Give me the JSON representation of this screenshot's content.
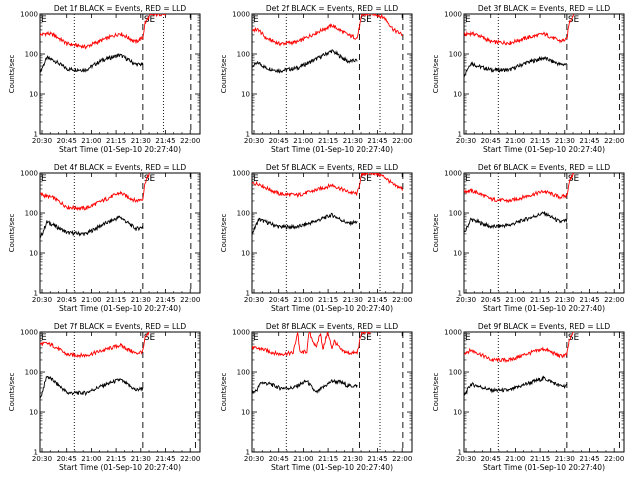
{
  "figure": {
    "x_axis_label": "Start Time (01-Sep-10 20:27:40)",
    "y_axis_label": "Counts/sec",
    "x_tick_labels": [
      "20:30",
      "20:45",
      "21:00",
      "21:15",
      "21:30",
      "21:45",
      "22:00"
    ],
    "y_tick_labels": [
      "1",
      "10",
      "100",
      "1000"
    ],
    "flag_labels": [
      "E",
      "SE"
    ],
    "colors": {
      "events": "#000000",
      "lld": "#ff0000",
      "axes": "#000000",
      "background": "#ffffff"
    }
  },
  "chart_data": [
    {
      "type": "line",
      "title": "Det 1f BLACK = Events, RED = LLD",
      "x_unit": "minutes after 20:30",
      "ylim": [
        1,
        1000
      ],
      "log_y": true,
      "markers": {
        "dotted": [
          15,
          54
        ],
        "dashed": [
          45,
          66
        ]
      },
      "series": [
        {
          "name": "Events",
          "x": [
            0,
            3,
            6,
            12,
            20,
            27,
            35,
            42,
            45
          ],
          "y": [
            35,
            80,
            70,
            42,
            40,
            70,
            95,
            55,
            55
          ]
        },
        {
          "name": "LLD",
          "x": [
            0,
            3,
            6,
            12,
            20,
            27,
            35,
            42,
            45,
            46,
            48,
            52,
            56
          ],
          "y": [
            300,
            330,
            300,
            180,
            150,
            220,
            330,
            200,
            260,
            600,
            900,
            1000,
            1000
          ]
        }
      ]
    },
    {
      "type": "line",
      "title": "Det 2f BLACK = Events, RED = LLD",
      "x_unit": "minutes after 20:30",
      "ylim": [
        1,
        1000
      ],
      "log_y": true,
      "markers": {
        "dotted": [
          15,
          56
        ],
        "dashed": [
          47,
          66
        ]
      },
      "series": [
        {
          "name": "Events",
          "x": [
            0,
            3,
            6,
            12,
            20,
            27,
            35,
            42,
            46
          ],
          "y": [
            50,
            60,
            45,
            38,
            45,
            70,
            120,
            65,
            70
          ]
        },
        {
          "name": "LLD",
          "x": [
            0,
            3,
            6,
            12,
            20,
            27,
            35,
            42,
            46,
            48,
            50,
            54,
            58,
            62,
            66
          ],
          "y": [
            400,
            400,
            250,
            180,
            200,
            320,
            520,
            300,
            250,
            900,
            1000,
            1000,
            800,
            400,
            300
          ]
        }
      ]
    },
    {
      "type": "line",
      "title": "Det 3f BLACK = Events, RED = LLD",
      "x_unit": "minutes after 20:30",
      "ylim": [
        1,
        1000
      ],
      "log_y": true,
      "markers": {
        "dotted": [
          15
        ],
        "dashed": [
          45,
          68
        ]
      },
      "series": [
        {
          "name": "Events",
          "x": [
            0,
            3,
            6,
            12,
            20,
            27,
            35,
            42,
            45
          ],
          "y": [
            30,
            60,
            50,
            40,
            40,
            60,
            80,
            55,
            55
          ]
        },
        {
          "name": "LLD",
          "x": [
            0,
            3,
            6,
            12,
            20,
            27,
            35,
            42,
            45,
            46,
            48
          ],
          "y": [
            300,
            330,
            300,
            200,
            190,
            250,
            320,
            210,
            230,
            600,
            1000
          ]
        }
      ]
    },
    {
      "type": "line",
      "title": "Det 4f BLACK = Events, RED = LLD",
      "x_unit": "minutes after 20:30",
      "ylim": [
        1,
        1000
      ],
      "log_y": true,
      "markers": {
        "dotted": [
          15
        ],
        "dashed": [
          45,
          66
        ]
      },
      "series": [
        {
          "name": "Events",
          "x": [
            0,
            3,
            6,
            12,
            20,
            27,
            35,
            42,
            45
          ],
          "y": [
            22,
            60,
            50,
            32,
            30,
            50,
            80,
            40,
            45
          ]
        },
        {
          "name": "LLD",
          "x": [
            0,
            3,
            6,
            12,
            20,
            27,
            35,
            42,
            45,
            46,
            48
          ],
          "y": [
            300,
            260,
            240,
            140,
            130,
            200,
            320,
            200,
            230,
            600,
            1000
          ]
        }
      ]
    },
    {
      "type": "line",
      "title": "Det 5f BLACK = Events, RED = LLD",
      "x_unit": "minutes after 20:30",
      "ylim": [
        1,
        1000
      ],
      "log_y": true,
      "markers": {
        "dotted": [
          15,
          56
        ],
        "dashed": [
          47,
          66
        ]
      },
      "series": [
        {
          "name": "Events",
          "x": [
            0,
            3,
            6,
            12,
            20,
            27,
            35,
            42,
            46
          ],
          "y": [
            30,
            70,
            60,
            45,
            45,
            60,
            90,
            55,
            60
          ]
        },
        {
          "name": "LLD",
          "x": [
            0,
            3,
            6,
            12,
            20,
            27,
            35,
            42,
            46,
            48,
            50,
            54,
            58,
            62,
            66
          ],
          "y": [
            550,
            540,
            430,
            300,
            280,
            360,
            500,
            340,
            300,
            900,
            1000,
            1000,
            800,
            500,
            400
          ]
        }
      ]
    },
    {
      "type": "line",
      "title": "Det 6f BLACK = Events, RED = LLD",
      "x_unit": "minutes after 20:30",
      "ylim": [
        1,
        1000
      ],
      "log_y": true,
      "markers": {
        "dotted": [
          15
        ],
        "dashed": [
          45,
          68
        ]
      },
      "series": [
        {
          "name": "Events",
          "x": [
            0,
            3,
            6,
            12,
            20,
            27,
            35,
            42,
            45
          ],
          "y": [
            30,
            70,
            60,
            45,
            50,
            70,
            100,
            60,
            65
          ]
        },
        {
          "name": "LLD",
          "x": [
            0,
            3,
            6,
            12,
            20,
            27,
            35,
            42,
            45,
            46,
            48
          ],
          "y": [
            350,
            360,
            320,
            220,
            200,
            260,
            350,
            250,
            270,
            600,
            1000
          ]
        }
      ]
    },
    {
      "type": "line",
      "title": "Det 7f BLACK = Events, RED = LLD",
      "x_unit": "minutes after 20:30",
      "ylim": [
        1,
        1000
      ],
      "log_y": true,
      "markers": {
        "dotted": [
          15
        ],
        "dashed": [
          45,
          68
        ]
      },
      "series": [
        {
          "name": "Events",
          "x": [
            0,
            3,
            6,
            12,
            20,
            27,
            35,
            42,
            45
          ],
          "y": [
            20,
            80,
            60,
            30,
            30,
            45,
            65,
            35,
            40
          ]
        },
        {
          "name": "LLD",
          "x": [
            0,
            3,
            6,
            12,
            20,
            27,
            35,
            42,
            45,
            46,
            48
          ],
          "y": [
            500,
            520,
            450,
            270,
            260,
            340,
            470,
            290,
            330,
            700,
            1000
          ]
        }
      ]
    },
    {
      "type": "line",
      "title": "Det 8f BLACK = Events, RED = LLD",
      "x_unit": "minutes after 20:30",
      "ylim": [
        1,
        1000
      ],
      "log_y": true,
      "markers": {
        "dotted": [
          15,
          56
        ],
        "dashed": [
          47,
          66
        ]
      },
      "series": [
        {
          "name": "Events",
          "x": [
            0,
            2,
            4,
            8,
            12,
            18,
            24,
            28,
            32,
            35,
            39,
            42,
            46
          ],
          "y": [
            30,
            35,
            55,
            50,
            40,
            40,
            60,
            30,
            45,
            60,
            55,
            45,
            45
          ]
        },
        {
          "name": "LLD",
          "x": [
            0,
            4,
            8,
            12,
            18,
            20,
            21,
            24,
            25,
            28,
            30,
            31,
            33,
            35,
            36,
            39,
            42,
            46,
            48,
            52
          ],
          "y": [
            400,
            380,
            320,
            280,
            300,
            1000,
            300,
            330,
            1000,
            400,
            1000,
            350,
            1000,
            400,
            600,
            350,
            300,
            300,
            1000,
            1000
          ]
        }
      ]
    },
    {
      "type": "line",
      "title": "Det 9f BLACK = Events, RED = LLD",
      "x_unit": "minutes after 20:30",
      "ylim": [
        1,
        1000
      ],
      "log_y": true,
      "markers": {
        "dotted": [
          15
        ],
        "dashed": [
          45,
          68
        ]
      },
      "series": [
        {
          "name": "Events",
          "x": [
            0,
            3,
            6,
            12,
            20,
            27,
            35,
            42,
            45
          ],
          "y": [
            25,
            50,
            45,
            35,
            35,
            50,
            70,
            45,
            45
          ]
        },
        {
          "name": "LLD",
          "x": [
            0,
            3,
            6,
            12,
            20,
            27,
            35,
            42,
            45,
            46,
            48
          ],
          "y": [
            300,
            350,
            300,
            200,
            200,
            280,
            380,
            250,
            270,
            600,
            1000
          ]
        }
      ]
    }
  ]
}
